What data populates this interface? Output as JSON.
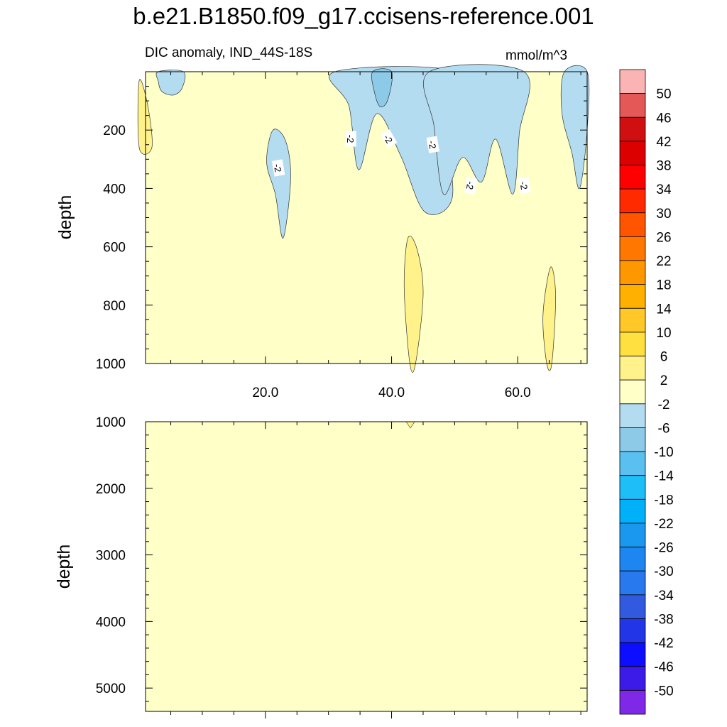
{
  "title": "b.e21.B1850.f09_g17.ccisens-reference.001",
  "subtitle": "DIC anomaly, IND_44S-18S",
  "units": "mmol/m^3",
  "chart_data": [
    {
      "type": "heatmap",
      "panel": "upper",
      "ylabel": "depth",
      "xlabel": "",
      "x_ticks": [
        "20.0",
        "40.0",
        "60.0"
      ],
      "x_tick_values": [
        20,
        40,
        60
      ],
      "xlim": [
        1,
        71
      ],
      "y_ticks": [
        "200",
        "400",
        "600",
        "800",
        "1000"
      ],
      "y_tick_values": [
        200,
        400,
        600,
        800,
        1000
      ],
      "ylim": [
        1000,
        0
      ],
      "background_level": "-2 to 2",
      "contour_labels": [
        "-2",
        "-2",
        "-2",
        "-2",
        "-2",
        "-2"
      ],
      "regions": [
        {
          "level": "-6 to -2",
          "x": [
            3,
            7
          ],
          "y": [
            0,
            80
          ]
        },
        {
          "level": "-6 to -2",
          "x": [
            20,
            24
          ],
          "y": [
            200,
            570
          ]
        },
        {
          "level": "-6 to -2",
          "x": [
            31,
            50
          ],
          "y": [
            0,
            480
          ]
        },
        {
          "level": "-10 to -6",
          "x": [
            37,
            40
          ],
          "y": [
            0,
            120
          ]
        },
        {
          "level": "-6 to -2",
          "x": [
            46,
            61
          ],
          "y": [
            0,
            420
          ]
        },
        {
          "level": "-6 to -2",
          "x": [
            67,
            71
          ],
          "y": [
            0,
            400
          ]
        },
        {
          "level": "2 to 6",
          "x": [
            42,
            45
          ],
          "y": [
            570,
            1000
          ]
        },
        {
          "level": "2 to 6",
          "x": [
            64,
            66
          ],
          "y": [
            670,
            1000
          ]
        },
        {
          "level": "2 to 6",
          "x": [
            0,
            2
          ],
          "y": [
            30,
            260
          ]
        }
      ]
    },
    {
      "type": "heatmap",
      "panel": "lower",
      "ylabel": "depth",
      "xlabel": "",
      "y_ticks": [
        "1000",
        "2000",
        "3000",
        "4000",
        "5000"
      ],
      "y_tick_values": [
        1000,
        2000,
        3000,
        4000,
        5000
      ],
      "ylim": [
        5350,
        1000
      ],
      "xlim": [
        1,
        71
      ],
      "background_level": "-2 to 2"
    }
  ],
  "colorbar": {
    "labels": [
      "50",
      "46",
      "42",
      "38",
      "34",
      "30",
      "26",
      "22",
      "18",
      "14",
      "10",
      "6",
      "2",
      "-2",
      "-6",
      "-10",
      "-14",
      "-18",
      "-22",
      "-26",
      "-30",
      "-34",
      "-38",
      "-42",
      "-46",
      "-50"
    ],
    "colors": [
      "#fbb4b4",
      "#e55858",
      "#d01010",
      "#dc0000",
      "#ff0000",
      "#ff2a00",
      "#ff5500",
      "#ff7700",
      "#ff9700",
      "#ffb000",
      "#ffc828",
      "#ffe040",
      "#fff28a",
      "#ffffc8",
      "#b4dcf0",
      "#8ccae8",
      "#5ac0f0",
      "#1ebef8",
      "#00b0f8",
      "#1a98f0",
      "#1e86f0",
      "#2878ee",
      "#325ae0",
      "#2236e8",
      "#0d0dff",
      "#3c1ae8",
      "#7f28e8"
    ]
  },
  "colors": {
    "neutral": "#ffffc8",
    "neg_light": "#b4dcf0",
    "neg_mid": "#8ccae8",
    "pos_light": "#fff28a"
  }
}
